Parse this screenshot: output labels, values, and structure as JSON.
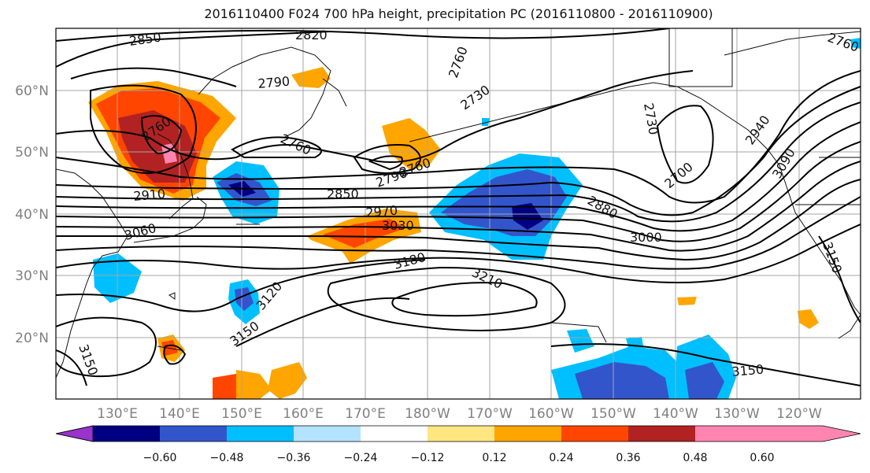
{
  "title": "2016110400 F024 700 hPa height, precipitation PC (2016110800 - 2016110900)",
  "lat_labels": [
    "60°N",
    "50°N",
    "40°N",
    "30°N",
    "20°N"
  ],
  "lon_labels": [
    "130°E",
    "140°E",
    "150°E",
    "160°E",
    "170°E",
    "180°W",
    "170°W",
    "160°W",
    "150°W",
    "140°W",
    "130°W",
    "120°W"
  ],
  "colorbar": {
    "ticks": [
      "−0.60",
      "−0.48",
      "−0.36",
      "−0.24",
      "−0.12",
      "0.12",
      "0.24",
      "0.36",
      "0.48",
      "0.60"
    ],
    "colors": [
      "#9933cc",
      "#000080",
      "#3355cc",
      "#00bfff",
      "#b3e3ff",
      "#ffffff",
      "#ffe680",
      "#ffa500",
      "#ff4500",
      "#b22222",
      "#ff85b0"
    ]
  },
  "contour_labels": [
    "2850",
    "2820",
    "2790",
    "2760",
    "2760",
    "2730",
    "2730",
    "2760",
    "2910",
    "2850",
    "2790",
    "2760",
    "2970",
    "3030",
    "3060",
    "2880",
    "3000",
    "2700",
    "2940",
    "3090",
    "3180",
    "3210",
    "3120",
    "3150",
    "3150",
    "3150",
    "3150",
    "2760"
  ]
}
